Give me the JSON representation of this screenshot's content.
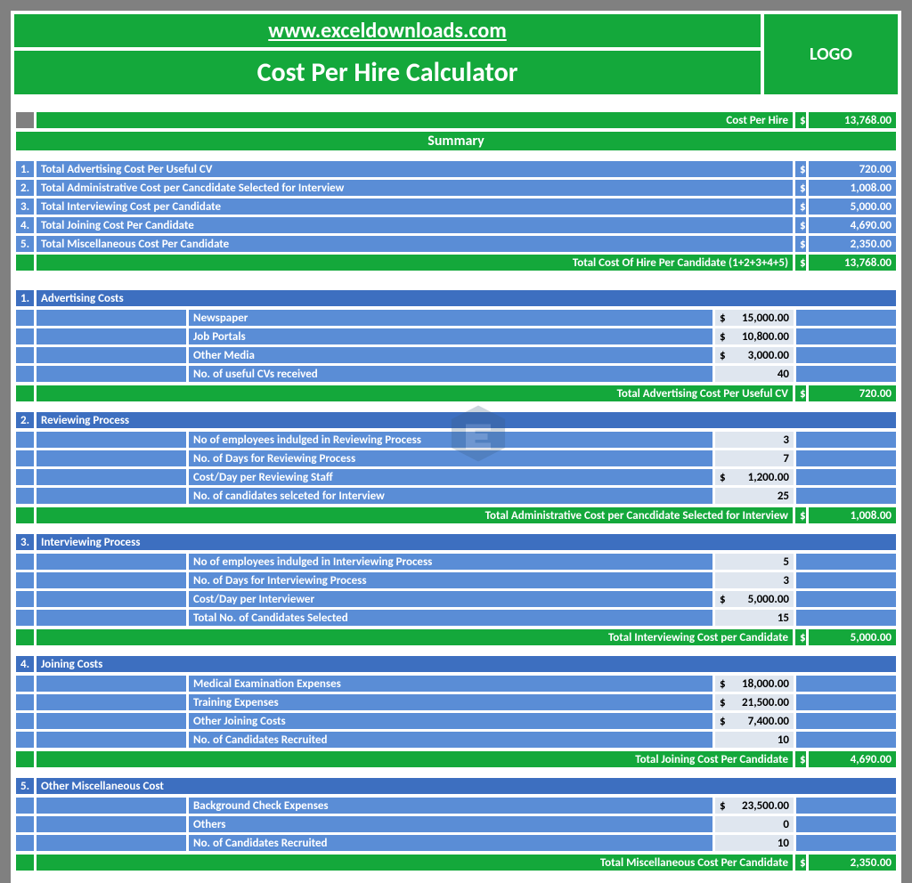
{
  "header": {
    "url": "www.exceldownloads.com",
    "title": "Cost Per Hire Calculator",
    "logo_text": "LOGO"
  },
  "cph": {
    "label": "Cost Per Hire",
    "currency": "$",
    "value": "13,768.00"
  },
  "summary": {
    "heading": "Summary",
    "rows": [
      {
        "n": "1.",
        "label": "Total Advertising Cost Per Useful CV",
        "currency": "$",
        "value": "720.00"
      },
      {
        "n": "2.",
        "label": "Total Administrative Cost per Cancdidate Selected for Interview",
        "currency": "$",
        "value": "1,008.00"
      },
      {
        "n": "3.",
        "label": "Total Interviewing Cost per Candidate",
        "currency": "$",
        "value": "5,000.00"
      },
      {
        "n": "4.",
        "label": "Total Joining Cost Per Candidate",
        "currency": "$",
        "value": "4,690.00"
      },
      {
        "n": "5.",
        "label": "Total Miscellaneous Cost Per Candidate",
        "currency": "$",
        "value": "2,350.00"
      }
    ],
    "total_label": "Total Cost Of Hire Per Candidate (1+2+3+4+5)",
    "total_currency": "$",
    "total_value": "13,768.00"
  },
  "sections": [
    {
      "n": "1.",
      "title": "Advertising Costs",
      "rows": [
        {
          "label": "Newspaper",
          "currency": "$",
          "value": "15,000.00"
        },
        {
          "label": "Job Portals",
          "currency": "$",
          "value": "10,800.00"
        },
        {
          "label": "Other Media",
          "currency": "$",
          "value": "3,000.00"
        },
        {
          "label": "No. of useful CVs received",
          "currency": "",
          "value": "40"
        }
      ],
      "total_label": "Total Advertising Cost Per Useful CV",
      "total_currency": "$",
      "total_value": "720.00"
    },
    {
      "n": "2.",
      "title": "Reviewing Process",
      "rows": [
        {
          "label": "No of employees indulged in Reviewing Process",
          "currency": "",
          "value": "3"
        },
        {
          "label": "No. of Days for Reviewing Process",
          "currency": "",
          "value": "7"
        },
        {
          "label": "Cost/Day per Reviewing Staff",
          "currency": "$",
          "value": "1,200.00"
        },
        {
          "label": "No. of candidates selceted for Interview",
          "currency": "",
          "value": "25"
        }
      ],
      "total_label": "Total Administrative Cost per Cancdidate Selected for Interview",
      "total_currency": "$",
      "total_value": "1,008.00"
    },
    {
      "n": "3.",
      "title": "Interviewing Process",
      "rows": [
        {
          "label": "No of employees indulged in Interviewing Process",
          "currency": "",
          "value": "5"
        },
        {
          "label": "No. of Days for Interviewing Process",
          "currency": "",
          "value": "3"
        },
        {
          "label": "Cost/Day per Interviewer",
          "currency": "$",
          "value": "5,000.00"
        },
        {
          "label": "Total No. of Candidates Selected",
          "currency": "",
          "value": "15"
        }
      ],
      "total_label": "Total Interviewing Cost per Candidate",
      "total_currency": "$",
      "total_value": "5,000.00"
    },
    {
      "n": "4.",
      "title": "Joining Costs",
      "rows": [
        {
          "label": "Medical Examination Expenses",
          "currency": "$",
          "value": "18,000.00"
        },
        {
          "label": "Training Expenses",
          "currency": "$",
          "value": "21,500.00"
        },
        {
          "label": "Other Joining Costs",
          "currency": "$",
          "value": "7,400.00"
        },
        {
          "label": "No. of Candidates Recruited",
          "currency": "",
          "value": "10"
        }
      ],
      "total_label": "Total Joining Cost Per Candidate",
      "total_currency": "$",
      "total_value": "4,690.00"
    },
    {
      "n": "5.",
      "title": "Other Miscellaneous Cost",
      "rows": [
        {
          "label": "Background Check Expenses",
          "currency": "$",
          "value": "23,500.00"
        },
        {
          "label": "Others",
          "currency": "",
          "value": "0"
        },
        {
          "label": "No. of Candidates Recruited",
          "currency": "",
          "value": "10"
        }
      ],
      "total_label": "Total Miscellaneous Cost Per Candidate",
      "total_currency": "$",
      "total_value": "2,350.00"
    }
  ],
  "colors": {
    "green": "#14a83b",
    "blue": "#5a8dd6",
    "blue_header": "#3d6fc0",
    "gray": "#808080",
    "light": "#dfe6ef"
  }
}
